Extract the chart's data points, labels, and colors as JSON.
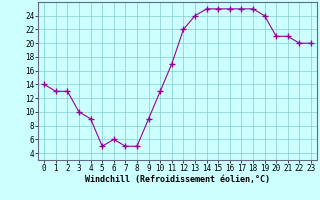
{
  "x": [
    0,
    1,
    2,
    3,
    4,
    5,
    6,
    7,
    8,
    9,
    10,
    11,
    12,
    13,
    14,
    15,
    16,
    17,
    18,
    19,
    20,
    21,
    22,
    23
  ],
  "y": [
    14,
    13,
    13,
    10,
    9,
    5,
    6,
    5,
    5,
    9,
    13,
    17,
    22,
    24,
    25,
    25,
    25,
    25,
    25,
    24,
    21,
    21,
    20,
    20
  ],
  "line_color": "#990099",
  "marker": "+",
  "marker_size": 4,
  "bg_color": "#ccffff",
  "grid_color": "#88cccc",
  "xlabel": "Windchill (Refroidissement éolien,°C)",
  "xlabel_fontsize": 6.0,
  "xlim": [
    -0.5,
    23.5
  ],
  "ylim": [
    3,
    26
  ],
  "yticks": [
    4,
    6,
    8,
    10,
    12,
    14,
    16,
    18,
    20,
    22,
    24
  ],
  "xticks": [
    0,
    1,
    2,
    3,
    4,
    5,
    6,
    7,
    8,
    9,
    10,
    11,
    12,
    13,
    14,
    15,
    16,
    17,
    18,
    19,
    20,
    21,
    22,
    23
  ],
  "tick_fontsize": 5.5
}
